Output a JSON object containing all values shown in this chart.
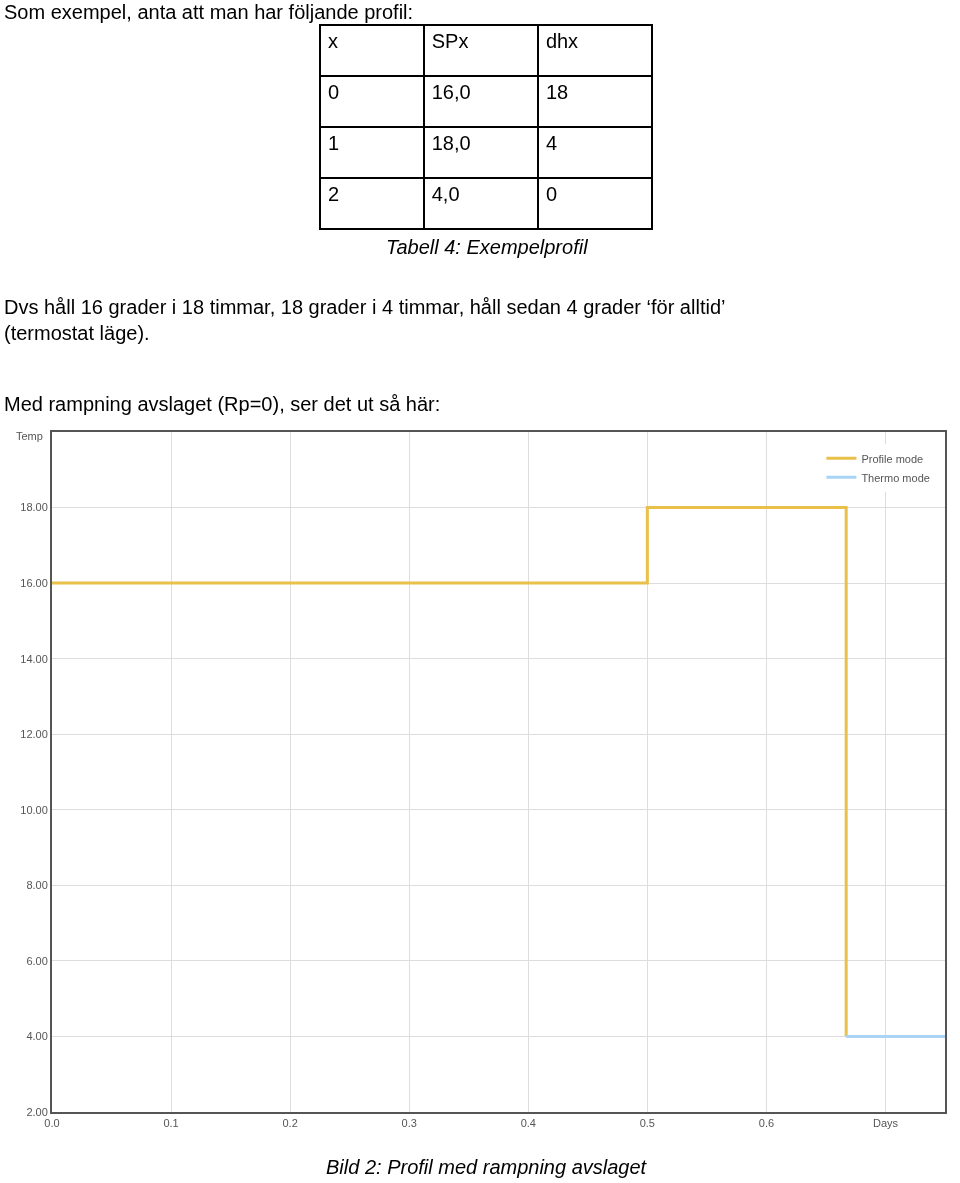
{
  "chart_data": {
    "type": "step",
    "ylabel": "Temp",
    "annotations": [
      "Som exempel, anta att man har följande profil:",
      "x",
      "SPx",
      "dhx",
      "0",
      "16,0",
      "18",
      "1",
      "18,0",
      "4",
      "2",
      "4,0",
      "0",
      "Tabell 4: Exempelprofil",
      "Dvs håll 16 grader i 18 timmar, 18 grader i 4 timmar, håll sedan 4 grader ‘för alltid’ (termostat läge).",
      "Med rampning avslaget (Rp=0), ser det ut så här:",
      "Bild 2: Profil med rampning avslaget"
    ],
    "series": [
      {
        "name": "Profile mode",
        "color": "#e8c04a",
        "x": [
          0,
          0.5,
          0.667
        ],
        "values": [
          16,
          18,
          4
        ]
      },
      {
        "name": "Thermo mode",
        "color": "#aad4f5",
        "x": [
          0.667,
          0.75
        ],
        "values": [
          4,
          4
        ]
      }
    ],
    "xlim": [
      0,
      0.75
    ],
    "xticks": [
      {
        "value": 0,
        "label": "0.0"
      },
      0.1,
      0.2,
      0.3,
      0.4,
      0.5,
      0.6,
      {
        "value": 0.7,
        "label": "Days"
      }
    ],
    "ylim": [
      2,
      20
    ],
    "yticks": [
      {
        "value": 2,
        "label": "2.00"
      },
      {
        "value": 4,
        "label": "4.00"
      },
      {
        "value": 6,
        "label": "6.00"
      },
      {
        "value": 8,
        "label": "8.00"
      },
      {
        "value": 10,
        "label": "10.00"
      },
      {
        "value": 12,
        "label": "12.00"
      },
      {
        "value": 14,
        "label": "14.00"
      },
      {
        "value": 16,
        "label": "16.00"
      },
      {
        "value": 18,
        "label": "18.00"
      }
    ],
    "grid": true,
    "legend": "top right",
    "line_style": "solid",
    "marker": "none"
  }
}
